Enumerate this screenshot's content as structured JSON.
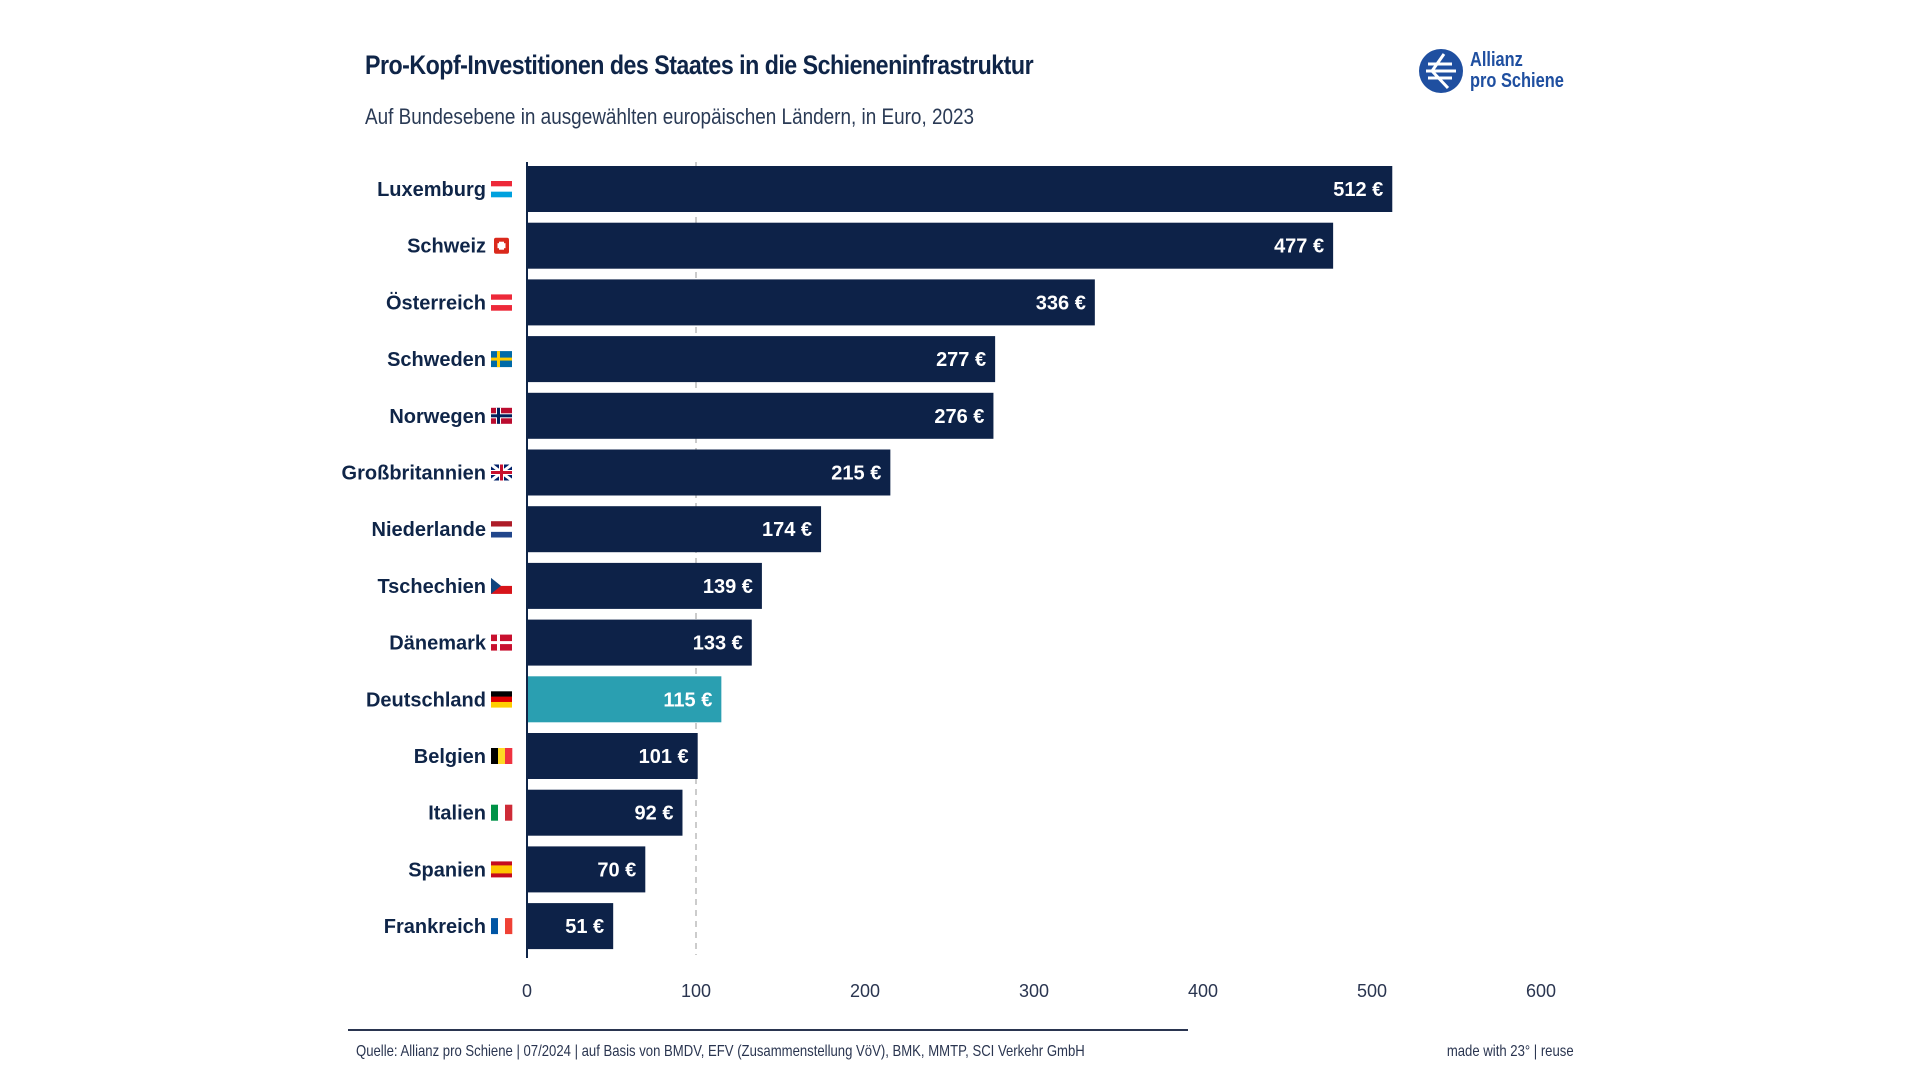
{
  "header": {
    "title": "Pro-Kopf-Investitionen des Staates in die Schieneninfrastruktur",
    "subtitle": "Auf Bundesebene in ausgewählten europäischen Ländern, in Euro, 2023"
  },
  "logo": {
    "line1": "Allianz",
    "line2": "pro Schiene"
  },
  "footer": {
    "source": "Quelle: Allianz pro Schiene | 07/2024 | auf Basis von BMDV, EFV (Zusammenstellung VöV), BMK, MMTP, SCI Verkehr GmbH",
    "credit": "made with 23° | reuse"
  },
  "colors": {
    "bar": "#0d2248",
    "highlight": "#2a9fb1",
    "text": "#0f2548"
  },
  "chart_data": {
    "type": "bar",
    "orientation": "horizontal",
    "title": "Pro-Kopf-Investitionen des Staates in die Schieneninfrastruktur",
    "subtitle": "Auf Bundesebene in ausgewählten europäischen Ländern, in Euro, 2023",
    "categories": [
      "Luxemburg",
      "Schweiz",
      "Österreich",
      "Schweden",
      "Norwegen",
      "Großbritannien",
      "Niederlande",
      "Tschechien",
      "Dänemark",
      "Deutschland",
      "Belgien",
      "Italien",
      "Spanien",
      "Frankreich"
    ],
    "flags": [
      "lu",
      "ch",
      "at",
      "se",
      "no",
      "gb",
      "nl",
      "cz",
      "dk",
      "de",
      "be",
      "it",
      "es",
      "fr"
    ],
    "values": [
      512,
      477,
      336,
      277,
      276,
      215,
      174,
      139,
      133,
      115,
      101,
      92,
      70,
      51
    ],
    "data_labels": [
      "512 €",
      "477 €",
      "336 €",
      "277 €",
      "276 €",
      "215 €",
      "174 €",
      "139 €",
      "133 €",
      "115 €",
      "101 €",
      "92 €",
      "70 €",
      "51 €"
    ],
    "highlight": "Deutschland",
    "xlim": [
      0,
      600
    ],
    "xticks": [
      "0",
      "100",
      "200",
      "300",
      "400",
      "500",
      "600"
    ],
    "gridlines": [
      100
    ],
    "legend": "none"
  }
}
